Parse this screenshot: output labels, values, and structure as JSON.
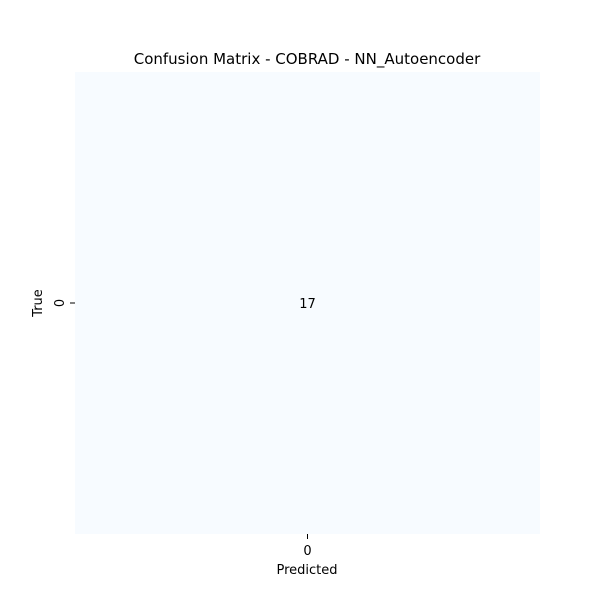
{
  "chart_data": {
    "type": "heatmap",
    "title": "Confusion Matrix - COBRAD - NN_Autoencoder",
    "xlabel": "Predicted",
    "ylabel": "True",
    "x_categories": [
      "0"
    ],
    "y_categories": [
      "0"
    ],
    "values": [
      [
        17
      ]
    ],
    "colormap": "Blues",
    "cell_color": "#f7fbff",
    "colorbar": false,
    "grid": false
  }
}
